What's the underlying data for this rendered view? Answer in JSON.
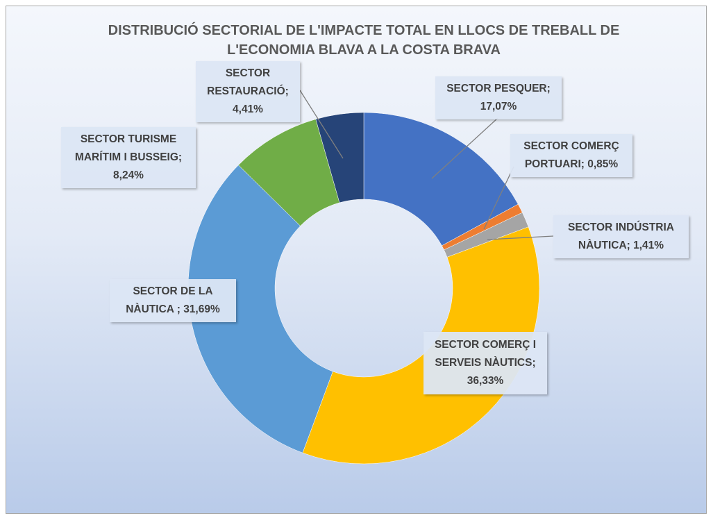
{
  "chart_data": {
    "type": "donut",
    "title": "DISTRIBUCIÓ SECTORIAL DE L'IMPACTE TOTAL EN LLOCS DE TREBALL DE L'ECONOMIA BLAVA A LA COSTA BRAVA",
    "categories": [
      "SECTOR PESQUER",
      "SECTOR COMERÇ PORTUARI",
      "SECTOR INDÚSTRIA NÀUTICA",
      "SECTOR COMERÇ I SERVEIS NÀUTICS",
      "SECTOR DE LA NÀUTICA ",
      "SECTOR TURISME MARÍTIM I BUSSEIG",
      "SECTOR RESTAURACIÓ"
    ],
    "values": [
      17.07,
      0.85,
      1.41,
      36.33,
      31.69,
      8.24,
      4.41
    ],
    "value_labels": [
      "17,07%",
      "0,85%",
      "1,41%",
      "36,33%",
      "31,69%",
      "8,24%",
      "4,41%"
    ],
    "label_separator": "; ",
    "colors": [
      "#4472c4",
      "#ed7d31",
      "#a5a5a5",
      "#ffc000",
      "#5b9bd5",
      "#70ad47",
      "#264478"
    ]
  }
}
